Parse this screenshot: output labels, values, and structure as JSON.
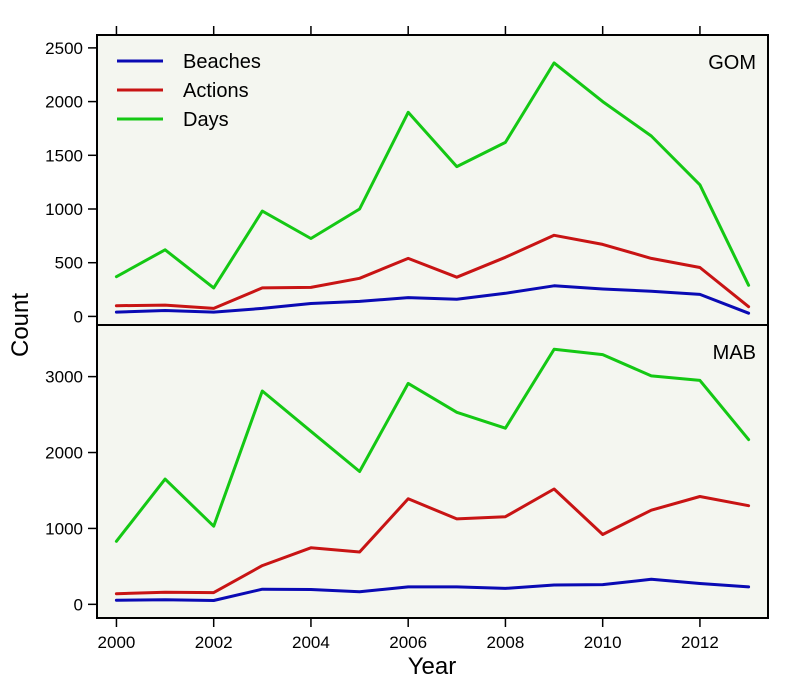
{
  "chart_data": {
    "type": "line",
    "x": [
      2000,
      2001,
      2002,
      2003,
      2004,
      2005,
      2006,
      2007,
      2008,
      2009,
      2010,
      2011,
      2012,
      2013
    ],
    "xlabel": "Year",
    "ylabel": "Count",
    "xticks": [
      2000,
      2002,
      2004,
      2006,
      2008,
      2010,
      2012
    ],
    "xlim": [
      1999.6,
      2013.4
    ],
    "legend": {
      "placement": "top-left",
      "entries": [
        {
          "name": "Beaches",
          "color": "#0a0ab4"
        },
        {
          "name": "Actions",
          "color": "#c81414"
        },
        {
          "name": "Days",
          "color": "#14c814"
        }
      ]
    },
    "grid": false,
    "panels": [
      {
        "label": "GOM",
        "ylim": [
          -80,
          2620
        ],
        "yticks": [
          0,
          500,
          1000,
          1500,
          2000,
          2500
        ],
        "series": [
          {
            "name": "Beaches",
            "color": "#0a0ab4",
            "values": [
              40,
              55,
              40,
              75,
              120,
              140,
              175,
              160,
              215,
              285,
              255,
              235,
              205,
              30
            ]
          },
          {
            "name": "Actions",
            "color": "#c81414",
            "values": [
              100,
              105,
              75,
              265,
              270,
              355,
              540,
              365,
              550,
              755,
              670,
              540,
              455,
              90
            ]
          },
          {
            "name": "Days",
            "color": "#14c814",
            "values": [
              370,
              620,
              265,
              980,
              725,
              1000,
              1900,
              1395,
              1620,
              2360,
              2000,
              1680,
              1225,
              290
            ]
          }
        ]
      },
      {
        "label": "MAB",
        "ylim": [
          -180,
          3680
        ],
        "yticks": [
          0,
          1000,
          2000,
          3000
        ],
        "series": [
          {
            "name": "Beaches",
            "color": "#0a0ab4",
            "values": [
              55,
              60,
              50,
              200,
              195,
              165,
              230,
              230,
              210,
              255,
              260,
              330,
              275,
              230
            ]
          },
          {
            "name": "Actions",
            "color": "#c81414",
            "values": [
              140,
              160,
              155,
              510,
              745,
              690,
              1390,
              1125,
              1155,
              1520,
              920,
              1240,
              1420,
              1300
            ]
          },
          {
            "name": "Days",
            "color": "#14c814",
            "values": [
              830,
              1650,
              1030,
              2810,
              2280,
              1750,
              2910,
              2530,
              2320,
              3360,
              3290,
              3010,
              2950,
              2170
            ]
          }
        ]
      }
    ]
  }
}
